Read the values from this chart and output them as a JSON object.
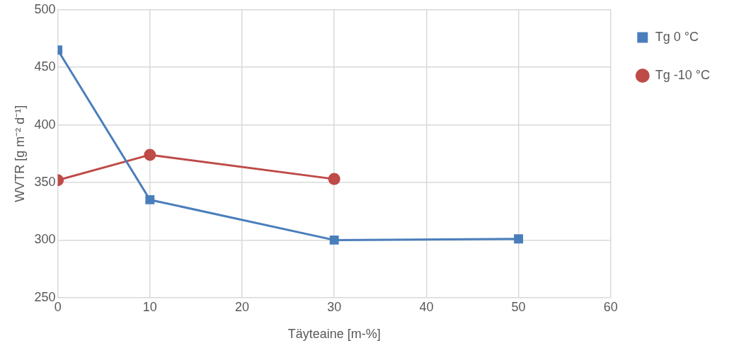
{
  "chart_data": {
    "type": "line",
    "xlabel": "Täyteaine [m-%]",
    "ylabel": "WVTR [g m⁻² d⁻¹]",
    "xlim": [
      0,
      60
    ],
    "xticks": [
      0,
      10,
      20,
      30,
      40,
      50,
      60
    ],
    "ylim": [
      250,
      500
    ],
    "yticks": [
      250,
      300,
      350,
      400,
      450,
      500
    ],
    "grid": true,
    "legend": "right",
    "line_style": "solid",
    "series": [
      {
        "name": "Tg 0 °C",
        "color": "#4a7ebb",
        "marker": "square",
        "x": [
          0,
          10,
          30,
          50
        ],
        "values": [
          465,
          335,
          300,
          301
        ]
      },
      {
        "name": "Tg -10 °C",
        "color": "#be4b48",
        "marker": "circle",
        "x": [
          0,
          10,
          30
        ],
        "values": [
          352,
          374,
          353
        ]
      }
    ]
  }
}
